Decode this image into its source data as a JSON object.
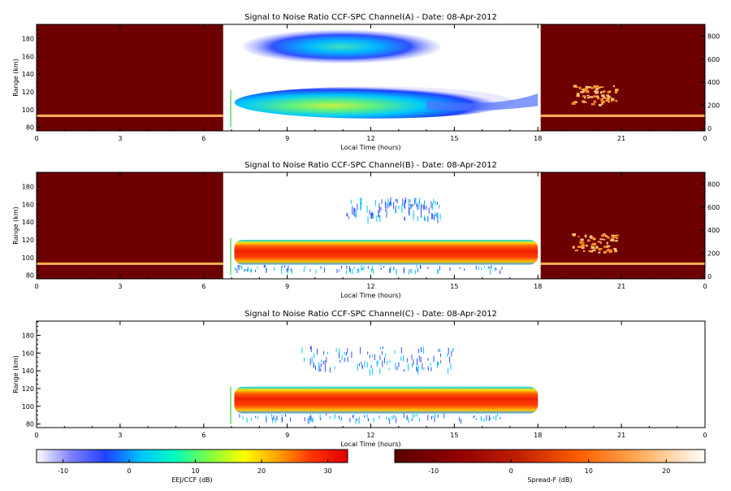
{
  "chart_data": [
    {
      "type": "heatmap",
      "title": "Signal to Noise Ratio CCF-SPC Channel(A) - Date: 08-Apr-2012",
      "xlabel": "Local Time (hours)",
      "ylabel": "Range (km)",
      "xlim": [
        0,
        24
      ],
      "ylim": [
        76,
        196
      ],
      "x_ticks": [
        "0",
        "3",
        "6",
        "9",
        "12",
        "15",
        "18",
        "21",
        "0"
      ],
      "y_ticks": [
        "80",
        "100",
        "120",
        "140",
        "160",
        "180"
      ],
      "right_ticks": [
        "0",
        "200",
        "400",
        "600",
        "800"
      ],
      "night_spans": [
        [
          0,
          6.7
        ],
        [
          18.1,
          24
        ]
      ],
      "echo_layers": [
        {
          "x0": 7.4,
          "x1": 14.5,
          "y0": 152,
          "y1": 190,
          "peak_db": 5
        },
        {
          "x0": 7.4,
          "x1": 18.0,
          "y0": 90,
          "y1": 126,
          "peak_db": 17
        }
      ]
    },
    {
      "type": "heatmap",
      "title": "Signal to Noise Ratio CCF-SPC Channel(B) - Date: 08-Apr-2012",
      "xlabel": "Local Time (hours)",
      "ylabel": "Range (km)",
      "xlim": [
        0,
        24
      ],
      "ylim": [
        76,
        196
      ],
      "x_ticks": [
        "0",
        "3",
        "6",
        "9",
        "12",
        "15",
        "18",
        "21",
        "0"
      ],
      "y_ticks": [
        "80",
        "100",
        "120",
        "140",
        "160",
        "180"
      ],
      "right_ticks": [
        "0",
        "200",
        "400",
        "600",
        "800"
      ],
      "night_spans": [
        [
          0,
          6.7
        ],
        [
          18.1,
          24
        ]
      ],
      "echo_layers": [
        {
          "x0": 7.1,
          "x1": 18.0,
          "y0": 92,
          "y1": 120,
          "peak_db": 30
        },
        {
          "x0": 11.0,
          "x1": 14.5,
          "y0": 145,
          "y1": 168,
          "peak_db": -3
        }
      ]
    },
    {
      "type": "heatmap",
      "title": "Signal to Noise Ratio CCF-SPC Channel(C) - Date: 08-Apr-2012",
      "xlabel": "Local Time (hours)",
      "ylabel": "Range (km)",
      "xlim": [
        0,
        24
      ],
      "ylim": [
        76,
        196
      ],
      "x_ticks": [
        "0",
        "3",
        "6",
        "9",
        "12",
        "15",
        "18",
        "21",
        "0"
      ],
      "y_ticks": [
        "80",
        "100",
        "120",
        "140",
        "160",
        "180"
      ],
      "echo_layers": [
        {
          "x0": 7.1,
          "x1": 18.0,
          "y0": 92,
          "y1": 122,
          "peak_db": 30
        },
        {
          "x0": 9.5,
          "x1": 15.0,
          "y0": 142,
          "y1": 168,
          "peak_db": -3
        }
      ]
    }
  ],
  "colorbars": [
    {
      "label": "EEJ/CCF (dB)",
      "ticks": [
        "-10",
        "0",
        "10",
        "20",
        "30"
      ],
      "range": [
        -14,
        33
      ]
    },
    {
      "label": "Spread-F (dB)",
      "ticks": [
        "-10",
        "0",
        "10",
        "20"
      ],
      "range": [
        -15,
        25
      ]
    }
  ],
  "colors": {
    "night_background": "#6d0000",
    "eej_scale": [
      "#ffffff",
      "#8080ff",
      "#2040ff",
      "#00c0ff",
      "#00ffc0",
      "#80ff40",
      "#ffff00",
      "#ffa000",
      "#ff3000",
      "#e00000"
    ],
    "spreadf_scale": [
      "#5a0000",
      "#900000",
      "#c02000",
      "#ff6000",
      "#ffb060",
      "#ffffff"
    ]
  }
}
